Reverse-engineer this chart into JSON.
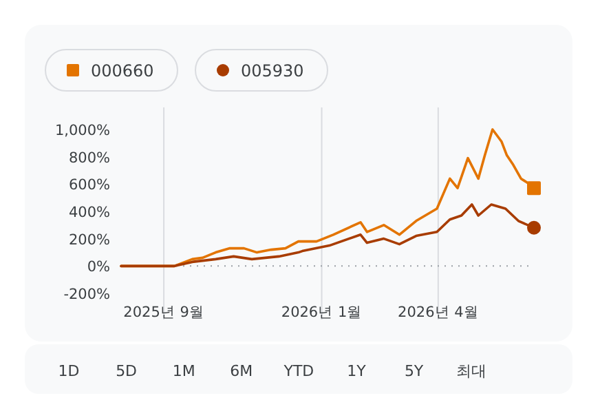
{
  "chart_data": {
    "type": "line",
    "x": [
      "2025-07-30",
      "2025-09-09",
      "2025-09-23",
      "2025-10-01",
      "2025-10-11",
      "2025-10-22",
      "2025-11-02",
      "2025-11-12",
      "2025-11-23",
      "2025-12-04",
      "2025-12-14",
      "2025-12-28",
      "2026-01-10",
      "2026-01-31",
      "2026-02-05",
      "2026-02-18",
      "2026-03-02",
      "2026-03-15",
      "2026-03-31",
      "2026-04-10",
      "2026-04-16",
      "2026-04-24",
      "2026-05-02",
      "2026-05-07",
      "2026-05-13",
      "2026-05-20",
      "2026-05-24",
      "2026-05-29",
      "2026-06-04",
      "2026-06-09",
      "2026-06-14"
    ],
    "series": [
      {
        "name": "000660",
        "color": "#e37400",
        "values": [
          0,
          0,
          50,
          60,
          100,
          130,
          130,
          100,
          120,
          130,
          180,
          180,
          230,
          320,
          250,
          300,
          230,
          330,
          420,
          640,
          570,
          790,
          640,
          810,
          1000,
          910,
          810,
          740,
          640,
          610,
          570
        ]
      },
      {
        "name": "005930",
        "color": "#a83c00",
        "x": [
          "2025-07-30",
          "2025-09-09",
          "2025-09-23",
          "2025-10-11",
          "2025-10-25",
          "2025-11-08",
          "2025-11-29",
          "2025-12-14",
          "2025-12-17",
          "2026-01-07",
          "2026-01-31",
          "2026-02-05",
          "2026-02-18",
          "2026-03-02",
          "2026-03-15",
          "2026-03-31",
          "2026-04-10",
          "2026-04-19",
          "2026-04-27",
          "2026-05-02",
          "2026-05-12",
          "2026-05-23",
          "2026-06-02",
          "2026-06-14"
        ],
        "values": [
          0,
          0,
          30,
          50,
          70,
          50,
          70,
          100,
          110,
          150,
          230,
          170,
          200,
          160,
          220,
          250,
          340,
          370,
          450,
          370,
          450,
          420,
          330,
          280
        ]
      },
      {
        "type": "scatter",
        "color": "#e37400",
        "marker": "square",
        "x": [
          "2026-06-14"
        ],
        "values": [
          570
        ]
      },
      {
        "type": "scatter",
        "color": "#a83c00",
        "marker": "circle",
        "x": [
          "2026-06-14"
        ],
        "values": [
          280
        ]
      }
    ],
    "xlim": [
      "2025-07-30",
      "2026-06-14"
    ],
    "xticks": [
      {
        "value": "2025-09-01",
        "label": "2025년 9월"
      },
      {
        "value": "2026-01-01",
        "label": "2026년 1월"
      },
      {
        "value": "2026-04-01",
        "label": "2026년 4월"
      }
    ],
    "ylim": [
      -200,
      1000
    ],
    "yticks": [
      {
        "value": -200,
        "label": "-200%"
      },
      {
        "value": 0,
        "label": "0%"
      },
      {
        "value": 200,
        "label": "200%"
      },
      {
        "value": 400,
        "label": "400%"
      },
      {
        "value": 600,
        "label": "600%"
      },
      {
        "value": 800,
        "label": "800%"
      },
      {
        "value": 1000,
        "label": "1,000%"
      }
    ],
    "grid": "x",
    "legend": "top left",
    "ref_lines": [
      {
        "axis": "y",
        "value": 0,
        "color": "#9aa0a6",
        "line_style": "dotted"
      }
    ],
    "annotations": [
      "1D",
      "5D",
      "1M",
      "6M",
      "YTD",
      "1Y",
      "5Y",
      "최대"
    ]
  }
}
